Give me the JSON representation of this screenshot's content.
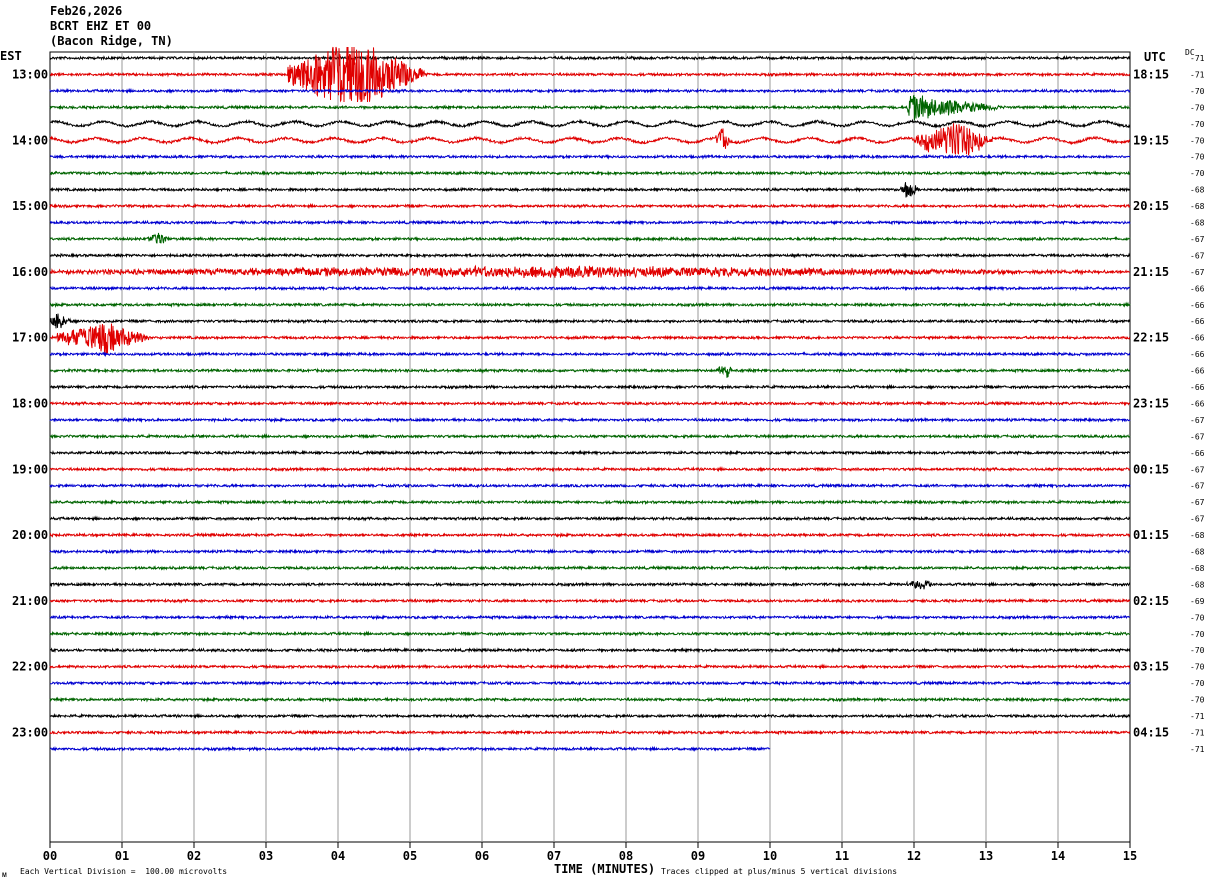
{
  "header": {
    "date": "Feb26,2026",
    "station": "BCRT EHZ ET 00",
    "location": "(Bacon Ridge, TN)"
  },
  "left_timezone": "EST",
  "right_timezone": "UTC",
  "dc_label": "DC",
  "footer": {
    "corner_mark": "ᴍ",
    "scale_note": "Each Vertical Division =  100.00 microvolts",
    "xaxis_title": "TIME (MINUTES)",
    "clip_note": "Traces clipped at plus/minus 5 vertical divisions"
  },
  "chart_data": {
    "type": "line",
    "title": "",
    "xlabel": "TIME (MINUTES)",
    "xlim": [
      0,
      15
    ],
    "xticks": [
      "00",
      "01",
      "02",
      "03",
      "04",
      "05",
      "06",
      "07",
      "08",
      "09",
      "10",
      "11",
      "12",
      "13",
      "14",
      "15"
    ],
    "hour_labels_left": [
      "13:00",
      "14:00",
      "15:00",
      "16:00",
      "17:00",
      "18:00",
      "19:00",
      "20:00",
      "21:00",
      "22:00",
      "23:00"
    ],
    "hour_labels_right": [
      "18:15",
      "19:15",
      "20:15",
      "21:15",
      "22:15",
      "23:15",
      "00:15",
      "01:15",
      "02:15",
      "03:15",
      "04:15"
    ],
    "first_row_offset_quarters": 1,
    "trace_colors": [
      "#000000",
      "#e00000",
      "#0000d0",
      "#006400"
    ],
    "dc_offsets": [
      -71,
      -71,
      -70,
      -70,
      -70,
      -70,
      -70,
      -70,
      -68,
      -68,
      -68,
      -67,
      -67,
      -67,
      -66,
      -66,
      -66,
      -66,
      -66,
      -66,
      -66,
      -66,
      -67,
      -67,
      -66,
      -67,
      -67,
      -67,
      -67,
      -68,
      -68,
      -68,
      -68,
      -69,
      -70,
      -70,
      -70,
      -70,
      -70,
      -70,
      -71,
      -71,
      -71
    ],
    "trace_count": 43,
    "last_trace_end_minute": 10,
    "events": [
      {
        "row": 1,
        "start": 3.3,
        "end": 5.2,
        "peak": 4.2,
        "amp": 1.0,
        "label": "large earthquake signal"
      },
      {
        "row": 3,
        "start": 11.9,
        "end": 13.2,
        "peak": 11.95,
        "amp": 0.35
      },
      {
        "row": 5,
        "start": 9.25,
        "end": 9.45,
        "peak": 9.35,
        "amp": 0.35
      },
      {
        "row": 5,
        "start": 12.0,
        "end": 13.1,
        "peak": 12.6,
        "amp": 0.5
      },
      {
        "row": 8,
        "start": 11.8,
        "end": 12.1,
        "peak": 11.9,
        "amp": 0.25
      },
      {
        "row": 11,
        "start": 1.35,
        "end": 1.65,
        "peak": 1.5,
        "amp": 0.2
      },
      {
        "row": 13,
        "start": 0.0,
        "end": 15.0,
        "peak": 7.0,
        "amp": 0.15
      },
      {
        "row": 16,
        "start": 0.0,
        "end": 0.3,
        "peak": 0.1,
        "amp": 0.25
      },
      {
        "row": 17,
        "start": 0.1,
        "end": 1.4,
        "peak": 0.75,
        "amp": 0.45
      },
      {
        "row": 19,
        "start": 9.25,
        "end": 9.5,
        "peak": 9.4,
        "amp": 0.2
      },
      {
        "row": 32,
        "start": 11.9,
        "end": 12.3,
        "peak": 12.1,
        "amp": 0.15
      }
    ]
  }
}
